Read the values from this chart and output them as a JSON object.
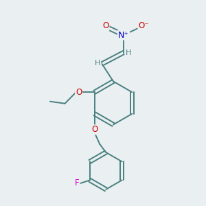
{
  "bg_color": "#eaeff1",
  "bond_color": "#4a8080",
  "atom_colors": {
    "O": "#cc0000",
    "N": "#0000cc",
    "F": "#cc00cc",
    "H": "#4a8080",
    "C": "#4a8080"
  },
  "figsize": [
    3.0,
    3.0
  ],
  "dpi": 100
}
